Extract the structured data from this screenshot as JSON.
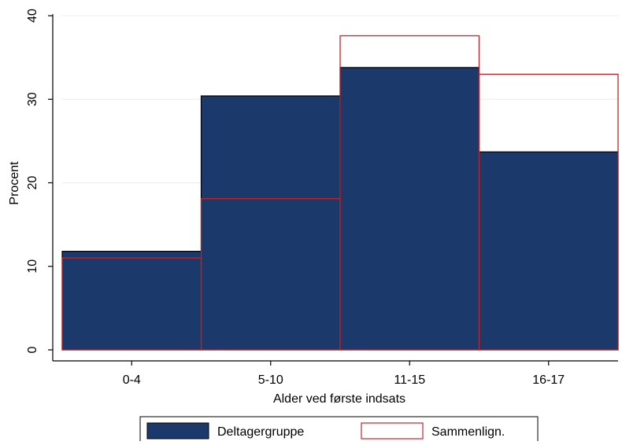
{
  "chart_data": {
    "type": "bar",
    "title": "",
    "xlabel": "Alder ved første indsats",
    "ylabel": "Procent",
    "categories": [
      "0-4",
      "5-10",
      "11-15",
      "16-17"
    ],
    "ylim": [
      0,
      40
    ],
    "yticks": [
      0,
      10,
      20,
      30,
      40
    ],
    "grid": true,
    "legend_position": "bottom",
    "series": [
      {
        "name": "Deltagergruppe",
        "values": [
          11.8,
          30.4,
          33.8,
          23.7
        ],
        "style": "filled",
        "fill": "#1b3a6b",
        "stroke": "#000000"
      },
      {
        "name": "Sammenlign.",
        "values": [
          11.0,
          18.1,
          37.6,
          33.0
        ],
        "style": "outline",
        "fill": "none",
        "stroke": "#c0252b"
      }
    ]
  }
}
